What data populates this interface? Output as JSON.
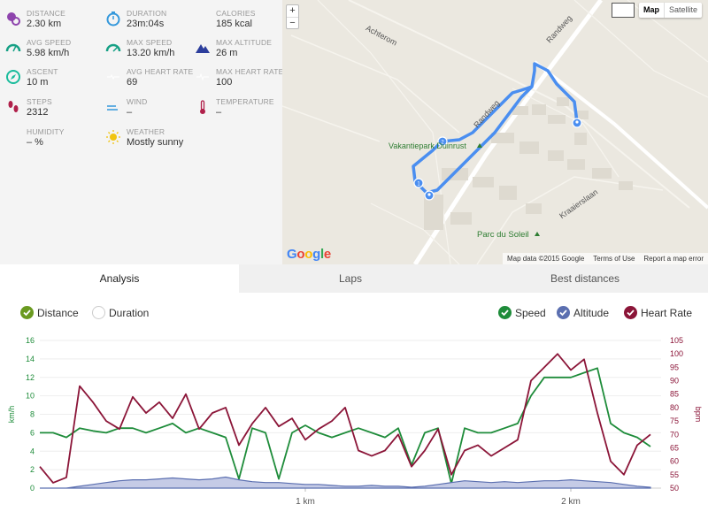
{
  "stats": [
    {
      "label": "DISTANCE",
      "value": "2.30 km",
      "icon": "pin-distance-icon",
      "color": "#8e44ad"
    },
    {
      "label": "DURATION",
      "value": "23m:04s",
      "icon": "stopwatch-icon",
      "color": "#3498db"
    },
    {
      "label": "CALORIES",
      "value": "185 kcal",
      "icon": "flame-icon",
      "color": "#e74c3c"
    },
    {
      "label": "AVG SPEED",
      "value": "5.98 km/h",
      "icon": "speedometer-icon",
      "color": "#16a085"
    },
    {
      "label": "MAX SPEED",
      "value": "13.20 km/h",
      "icon": "speedometer-max-icon",
      "color": "#16a085"
    },
    {
      "label": "MAX ALTITUDE",
      "value": "26 m",
      "icon": "mountain-icon",
      "color": "#2c3e9c"
    },
    {
      "label": "ASCENT",
      "value": "10 m",
      "icon": "compass-icon",
      "color": "#1abc9c"
    },
    {
      "label": "AVG HEART RATE",
      "value": "69",
      "icon": "heart-pulse-icon",
      "color": "#b0204a"
    },
    {
      "label": "MAX HEART RATE",
      "value": "100",
      "icon": "heart-pulse-max-icon",
      "color": "#b0204a"
    },
    {
      "label": "STEPS",
      "value": "2312",
      "icon": "footprints-icon",
      "color": "#b0204a"
    },
    {
      "label": "WIND",
      "value": "–",
      "icon": "wind-icon",
      "color": "#3498db"
    },
    {
      "label": "TEMPERATURE",
      "value": "–",
      "icon": "thermometer-icon",
      "color": "#b0204a"
    },
    {
      "label": "HUMIDITY",
      "value": "– %",
      "icon": "droplets-icon",
      "color": "#5dade2"
    },
    {
      "label": "WEATHER",
      "value": "Mostly sunny",
      "icon": "sun-icon",
      "color": "#f1c40f"
    }
  ],
  "map": {
    "zoom_in": "+",
    "zoom_out": "−",
    "types": [
      "Map",
      "Satellite"
    ],
    "active_type": "Map",
    "labels": [
      "Achterom",
      "Randweg",
      "Randweg",
      "Vakantiepark Duinrust",
      "Kraaierslaan",
      "Parc du Soleil"
    ],
    "google": "Google",
    "attribution": [
      "Map data ©2015 Google",
      "Terms of Use",
      "Report a map error"
    ],
    "markers": [
      "1",
      "2"
    ],
    "route_color": "#4a8ef0"
  },
  "tabs": [
    "Analysis",
    "Laps",
    "Best distances"
  ],
  "active_tab": "Analysis",
  "toggles": {
    "x_axis": [
      {
        "label": "Distance",
        "checked": true,
        "color": "#6a9a20"
      },
      {
        "label": "Duration",
        "checked": false,
        "color": "#cccccc"
      }
    ],
    "series": [
      {
        "label": "Speed",
        "checked": true,
        "color": "#1e8c3a"
      },
      {
        "label": "Altitude",
        "checked": true,
        "color": "#5b6fb0"
      },
      {
        "label": "Heart Rate",
        "checked": true,
        "color": "#8b1538"
      }
    ]
  },
  "chart_data": {
    "type": "line",
    "x_unit": "km",
    "x": [
      0.0,
      0.05,
      0.1,
      0.15,
      0.2,
      0.25,
      0.3,
      0.35,
      0.4,
      0.45,
      0.5,
      0.55,
      0.6,
      0.65,
      0.7,
      0.75,
      0.8,
      0.85,
      0.9,
      0.95,
      1.0,
      1.05,
      1.1,
      1.15,
      1.2,
      1.25,
      1.3,
      1.35,
      1.4,
      1.45,
      1.5,
      1.55,
      1.6,
      1.65,
      1.7,
      1.75,
      1.8,
      1.85,
      1.9,
      1.95,
      2.0,
      2.05,
      2.1,
      2.15,
      2.2,
      2.25,
      2.3
    ],
    "x_ticks": [
      "1 km",
      "2 km"
    ],
    "x_tick_values": [
      1,
      2
    ],
    "x_range": [
      0,
      2.34
    ],
    "y_left": {
      "label": "km/h",
      "range": [
        0,
        16
      ],
      "ticks": [
        0,
        2,
        4,
        6,
        8,
        10,
        12,
        14,
        16
      ]
    },
    "y_right": {
      "label": "bpm",
      "range": [
        50,
        105
      ],
      "ticks": [
        50,
        55,
        60,
        65,
        70,
        75,
        80,
        85,
        90,
        95,
        100,
        105
      ]
    },
    "series": [
      {
        "name": "Speed",
        "axis": "left",
        "color": "#1e8c3a",
        "values": [
          6,
          6,
          5.5,
          6.5,
          6.2,
          6,
          6.5,
          6.5,
          6,
          6.5,
          7,
          6,
          6.5,
          6,
          5.5,
          1,
          6.5,
          6,
          1,
          6,
          6.8,
          6,
          5.5,
          6,
          6.5,
          6,
          5.5,
          6.5,
          2.5,
          6,
          6.5,
          0.5,
          6.5,
          6,
          6,
          6.5,
          7,
          10,
          12,
          12,
          12,
          12.5,
          13,
          7,
          6,
          5.5,
          4.5
        ]
      },
      {
        "name": "Altitude",
        "axis": "left",
        "color": "#5b6fb0",
        "values": [
          0,
          0,
          0,
          0.2,
          0.4,
          0.6,
          0.8,
          0.9,
          0.9,
          1.0,
          1.1,
          1.0,
          0.9,
          1.0,
          1.2,
          0.9,
          0.7,
          0.6,
          0.6,
          0.5,
          0.4,
          0.4,
          0.3,
          0.2,
          0.2,
          0.3,
          0.2,
          0.2,
          0.1,
          0.2,
          0.4,
          0.6,
          0.8,
          0.7,
          0.6,
          0.7,
          0.6,
          0.7,
          0.8,
          0.8,
          0.9,
          0.8,
          0.7,
          0.6,
          0.4,
          0.2,
          0.1
        ]
      },
      {
        "name": "Heart Rate",
        "axis": "right",
        "color": "#8b1538",
        "values": [
          58,
          52,
          54,
          88,
          82,
          75,
          72,
          84,
          78,
          82,
          76,
          85,
          72,
          78,
          80,
          66,
          74,
          80,
          73,
          76,
          68,
          72,
          75,
          80,
          64,
          62,
          64,
          70,
          58,
          64,
          72,
          55,
          64,
          66,
          62,
          65,
          68,
          90,
          95,
          100,
          94,
          98,
          78,
          60,
          55,
          66,
          70
        ]
      }
    ],
    "grid": true
  }
}
